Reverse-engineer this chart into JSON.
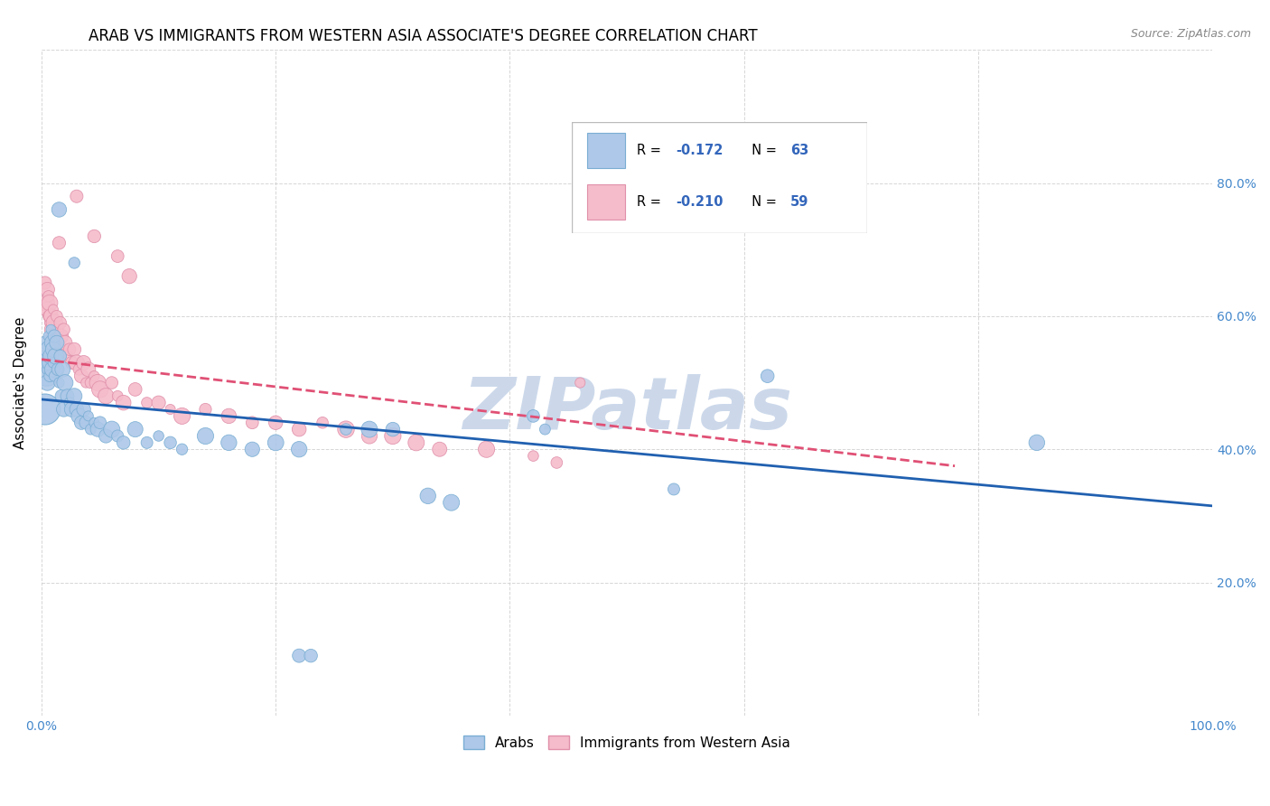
{
  "title": "ARAB VS IMMIGRANTS FROM WESTERN ASIA ASSOCIATE'S DEGREE CORRELATION CHART",
  "source": "Source: ZipAtlas.com",
  "ylabel": "Associate's Degree",
  "watermark": "ZIPatlas",
  "xlim": [
    0.0,
    1.0
  ],
  "ylim": [
    0.0,
    1.0
  ],
  "xticks": [
    0.0,
    0.2,
    0.4,
    0.6,
    0.8,
    1.0
  ],
  "yticks": [
    0.0,
    0.2,
    0.4,
    0.6,
    0.8,
    1.0
  ],
  "xticklabels": [
    "0.0%",
    "",
    "",
    "",
    "",
    "100.0%"
  ],
  "yticklabels_right": [
    "",
    "20.0%",
    "40.0%",
    "60.0%",
    "80.0%",
    ""
  ],
  "legend_entries": [
    {
      "label_r": "R = ",
      "label_rv": "-0.172",
      "label_n": "  N = ",
      "label_nv": "63",
      "color": "#adc8e8",
      "edge_color": "#7aaed4"
    },
    {
      "label_r": "R = ",
      "label_rv": "-0.210",
      "label_n": "  N = ",
      "label_nv": "59",
      "color": "#f5bccb",
      "edge_color": "#e090aa"
    }
  ],
  "series": [
    {
      "name": "Arabs",
      "color": "#adc8e8",
      "edge_color": "#7aaed4",
      "points": [
        [
          0.003,
          0.54
        ],
        [
          0.004,
          0.56
        ],
        [
          0.005,
          0.52
        ],
        [
          0.005,
          0.5
        ],
        [
          0.006,
          0.57
        ],
        [
          0.006,
          0.55
        ],
        [
          0.007,
          0.53
        ],
        [
          0.007,
          0.51
        ],
        [
          0.008,
          0.58
        ],
        [
          0.008,
          0.54
        ],
        [
          0.009,
          0.56
        ],
        [
          0.009,
          0.52
        ],
        [
          0.01,
          0.55
        ],
        [
          0.01,
          0.53
        ],
        [
          0.011,
          0.57
        ],
        [
          0.011,
          0.51
        ],
        [
          0.012,
          0.54
        ],
        [
          0.013,
          0.56
        ],
        [
          0.014,
          0.52
        ],
        [
          0.015,
          0.5
        ],
        [
          0.016,
          0.54
        ],
        [
          0.017,
          0.48
        ],
        [
          0.018,
          0.52
        ],
        [
          0.019,
          0.46
        ],
        [
          0.02,
          0.5
        ],
        [
          0.022,
          0.48
        ],
        [
          0.024,
          0.47
        ],
        [
          0.026,
          0.46
        ],
        [
          0.028,
          0.48
        ],
        [
          0.03,
          0.46
        ],
        [
          0.032,
          0.45
        ],
        [
          0.034,
          0.44
        ],
        [
          0.036,
          0.46
        ],
        [
          0.038,
          0.44
        ],
        [
          0.04,
          0.45
        ],
        [
          0.042,
          0.43
        ],
        [
          0.045,
          0.44
        ],
        [
          0.048,
          0.43
        ],
        [
          0.05,
          0.44
        ],
        [
          0.055,
          0.42
        ],
        [
          0.06,
          0.43
        ],
        [
          0.065,
          0.42
        ],
        [
          0.07,
          0.41
        ],
        [
          0.08,
          0.43
        ],
        [
          0.09,
          0.41
        ],
        [
          0.1,
          0.42
        ],
        [
          0.11,
          0.41
        ],
        [
          0.12,
          0.4
        ],
        [
          0.14,
          0.42
        ],
        [
          0.16,
          0.41
        ],
        [
          0.18,
          0.4
        ],
        [
          0.2,
          0.41
        ],
        [
          0.22,
          0.4
        ],
        [
          0.26,
          0.43
        ],
        [
          0.28,
          0.43
        ],
        [
          0.3,
          0.43
        ],
        [
          0.33,
          0.33
        ],
        [
          0.35,
          0.32
        ],
        [
          0.42,
          0.45
        ],
        [
          0.43,
          0.43
        ],
        [
          0.54,
          0.34
        ],
        [
          0.62,
          0.51
        ],
        [
          0.85,
          0.41
        ]
      ],
      "large_points": [
        [
          0.003,
          0.46
        ],
        [
          0.004,
          0.52
        ]
      ],
      "extra_points": [
        [
          0.015,
          0.76
        ],
        [
          0.028,
          0.68
        ],
        [
          0.22,
          0.09
        ],
        [
          0.23,
          0.09
        ]
      ],
      "trend_x": [
        0.0,
        1.0
      ],
      "trend_y": [
        0.475,
        0.315
      ],
      "trend_color": "#2060b0",
      "trend_style": "-"
    },
    {
      "name": "Immigrants from Western Asia",
      "color": "#f5bccb",
      "edge_color": "#e090aa",
      "points": [
        [
          0.003,
          0.65
        ],
        [
          0.004,
          0.62
        ],
        [
          0.005,
          0.61
        ],
        [
          0.005,
          0.64
        ],
        [
          0.006,
          0.6
        ],
        [
          0.006,
          0.63
        ],
        [
          0.007,
          0.59
        ],
        [
          0.007,
          0.62
        ],
        [
          0.008,
          0.6
        ],
        [
          0.009,
          0.58
        ],
        [
          0.01,
          0.61
        ],
        [
          0.011,
          0.59
        ],
        [
          0.012,
          0.57
        ],
        [
          0.013,
          0.6
        ],
        [
          0.014,
          0.58
        ],
        [
          0.015,
          0.56
        ],
        [
          0.016,
          0.59
        ],
        [
          0.017,
          0.57
        ],
        [
          0.018,
          0.55
        ],
        [
          0.019,
          0.58
        ],
        [
          0.02,
          0.56
        ],
        [
          0.022,
          0.54
        ],
        [
          0.024,
          0.55
        ],
        [
          0.026,
          0.53
        ],
        [
          0.028,
          0.55
        ],
        [
          0.03,
          0.53
        ],
        [
          0.032,
          0.52
        ],
        [
          0.034,
          0.51
        ],
        [
          0.036,
          0.53
        ],
        [
          0.038,
          0.5
        ],
        [
          0.04,
          0.52
        ],
        [
          0.042,
          0.5
        ],
        [
          0.045,
          0.51
        ],
        [
          0.048,
          0.5
        ],
        [
          0.05,
          0.49
        ],
        [
          0.055,
          0.48
        ],
        [
          0.06,
          0.5
        ],
        [
          0.065,
          0.48
        ],
        [
          0.07,
          0.47
        ],
        [
          0.08,
          0.49
        ],
        [
          0.09,
          0.47
        ],
        [
          0.1,
          0.47
        ],
        [
          0.11,
          0.46
        ],
        [
          0.12,
          0.45
        ],
        [
          0.14,
          0.46
        ],
        [
          0.16,
          0.45
        ],
        [
          0.18,
          0.44
        ],
        [
          0.2,
          0.44
        ],
        [
          0.22,
          0.43
        ],
        [
          0.24,
          0.44
        ],
        [
          0.26,
          0.43
        ],
        [
          0.28,
          0.42
        ],
        [
          0.3,
          0.42
        ],
        [
          0.32,
          0.41
        ],
        [
          0.34,
          0.4
        ],
        [
          0.38,
          0.4
        ],
        [
          0.42,
          0.39
        ],
        [
          0.44,
          0.38
        ],
        [
          0.46,
          0.5
        ]
      ],
      "extra_points": [
        [
          0.03,
          0.78
        ],
        [
          0.045,
          0.72
        ],
        [
          0.065,
          0.69
        ],
        [
          0.075,
          0.66
        ],
        [
          0.015,
          0.71
        ]
      ],
      "trend_x": [
        0.0,
        0.78
      ],
      "trend_y": [
        0.535,
        0.375
      ],
      "trend_color": "#e05075",
      "trend_style": "--"
    }
  ],
  "background_color": "#ffffff",
  "grid_color": "#cccccc",
  "title_fontsize": 12,
  "axis_fontsize": 11,
  "tick_fontsize": 10,
  "source_fontsize": 9,
  "watermark_color": "#ccd8ea",
  "watermark_fontsize": 58
}
